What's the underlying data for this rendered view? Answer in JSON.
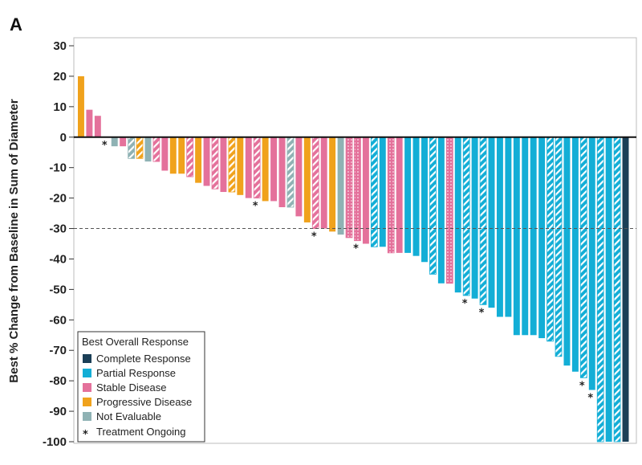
{
  "panel_label": "A",
  "chart_data": {
    "type": "bar",
    "title": "",
    "xlabel": "",
    "ylabel": "Best % Change from Baseline in Sum of Diameter",
    "ylim": [
      -100,
      30
    ],
    "yticks": [
      30,
      20,
      10,
      0,
      -10,
      -20,
      -30,
      -40,
      -50,
      -60,
      -70,
      -80,
      -90,
      -100
    ],
    "ytick_labels": [
      "30",
      "20",
      "10",
      "0",
      "-10",
      "-20",
      "-30",
      "-40",
      "-50",
      "-60",
      "-70",
      "-80",
      "-90",
      "-100"
    ],
    "reference_line": -30,
    "grid": false,
    "categories": [
      "Complete Response",
      "Partial Response",
      "Stable Disease",
      "Progressive Disease",
      "Not Evaluable"
    ],
    "colors": {
      "Complete Response": "#1b3f57",
      "Partial Response": "#13aed6",
      "Stable Disease": "#e4719b",
      "Progressive Disease": "#f0a21c",
      "Not Evaluable": "#8fb2b4"
    },
    "legend": {
      "title": "Best Overall Response",
      "placement": "bottom-left",
      "entries": [
        {
          "label": "Complete Response",
          "color": "#1b3f57"
        },
        {
          "label": "Partial Response",
          "color": "#13aed6"
        },
        {
          "label": "Stable Disease",
          "color": "#e4719b"
        },
        {
          "label": "Progressive Disease",
          "color": "#f0a21c"
        },
        {
          "label": "Not Evaluable",
          "color": "#8fb2b4"
        },
        {
          "label": "Treatment Ongoing",
          "symbol": "*"
        }
      ]
    },
    "bars": [
      {
        "value": 20,
        "category": "Progressive Disease",
        "pattern": "solid",
        "ongoing": false
      },
      {
        "value": 9,
        "category": "Stable Disease",
        "pattern": "solid",
        "ongoing": false
      },
      {
        "value": 7,
        "category": "Stable Disease",
        "pattern": "solid",
        "ongoing": false
      },
      {
        "value": 0,
        "category": "Stable Disease",
        "pattern": "solid",
        "ongoing": true
      },
      {
        "value": -3,
        "category": "Not Evaluable",
        "pattern": "solid",
        "ongoing": false
      },
      {
        "value": -3,
        "category": "Stable Disease",
        "pattern": "solid",
        "ongoing": false
      },
      {
        "value": -7,
        "category": "Not Evaluable",
        "pattern": "hatched",
        "ongoing": false
      },
      {
        "value": -7,
        "category": "Progressive Disease",
        "pattern": "hatched",
        "ongoing": false
      },
      {
        "value": -8,
        "category": "Not Evaluable",
        "pattern": "solid",
        "ongoing": false
      },
      {
        "value": -8,
        "category": "Stable Disease",
        "pattern": "hatched",
        "ongoing": false
      },
      {
        "value": -11,
        "category": "Stable Disease",
        "pattern": "solid",
        "ongoing": false
      },
      {
        "value": -12,
        "category": "Progressive Disease",
        "pattern": "solid",
        "ongoing": false
      },
      {
        "value": -12,
        "category": "Progressive Disease",
        "pattern": "solid",
        "ongoing": false
      },
      {
        "value": -13,
        "category": "Stable Disease",
        "pattern": "hatched",
        "ongoing": false
      },
      {
        "value": -15,
        "category": "Progressive Disease",
        "pattern": "solid",
        "ongoing": false
      },
      {
        "value": -16,
        "category": "Stable Disease",
        "pattern": "solid",
        "ongoing": false
      },
      {
        "value": -17,
        "category": "Stable Disease",
        "pattern": "hatched",
        "ongoing": false
      },
      {
        "value": -18,
        "category": "Stable Disease",
        "pattern": "solid",
        "ongoing": false
      },
      {
        "value": -18,
        "category": "Progressive Disease",
        "pattern": "hatched",
        "ongoing": false
      },
      {
        "value": -19,
        "category": "Progressive Disease",
        "pattern": "solid",
        "ongoing": false
      },
      {
        "value": -20,
        "category": "Stable Disease",
        "pattern": "solid",
        "ongoing": false
      },
      {
        "value": -20,
        "category": "Stable Disease",
        "pattern": "hatched",
        "ongoing": true
      },
      {
        "value": -21,
        "category": "Progressive Disease",
        "pattern": "solid",
        "ongoing": false
      },
      {
        "value": -21,
        "category": "Stable Disease",
        "pattern": "solid",
        "ongoing": false
      },
      {
        "value": -23,
        "category": "Stable Disease",
        "pattern": "solid",
        "ongoing": false
      },
      {
        "value": -23,
        "category": "Not Evaluable",
        "pattern": "hatched",
        "ongoing": false
      },
      {
        "value": -26,
        "category": "Stable Disease",
        "pattern": "solid",
        "ongoing": false
      },
      {
        "value": -28,
        "category": "Progressive Disease",
        "pattern": "solid",
        "ongoing": false
      },
      {
        "value": -30,
        "category": "Stable Disease",
        "pattern": "hatched",
        "ongoing": true
      },
      {
        "value": -30,
        "category": "Stable Disease",
        "pattern": "solid",
        "ongoing": false
      },
      {
        "value": -31,
        "category": "Progressive Disease",
        "pattern": "solid",
        "ongoing": false
      },
      {
        "value": -32,
        "category": "Not Evaluable",
        "pattern": "solid",
        "ongoing": false
      },
      {
        "value": -33,
        "category": "Stable Disease",
        "pattern": "dotted",
        "ongoing": false
      },
      {
        "value": -34,
        "category": "Stable Disease",
        "pattern": "dotted",
        "ongoing": true
      },
      {
        "value": -35,
        "category": "Stable Disease",
        "pattern": "solid",
        "ongoing": false
      },
      {
        "value": -36,
        "category": "Partial Response",
        "pattern": "hatched",
        "ongoing": false
      },
      {
        "value": -36,
        "category": "Partial Response",
        "pattern": "solid",
        "ongoing": false
      },
      {
        "value": -38,
        "category": "Stable Disease",
        "pattern": "dotted",
        "ongoing": false
      },
      {
        "value": -38,
        "category": "Stable Disease",
        "pattern": "solid",
        "ongoing": false
      },
      {
        "value": -38,
        "category": "Partial Response",
        "pattern": "solid",
        "ongoing": false
      },
      {
        "value": -39,
        "category": "Partial Response",
        "pattern": "solid",
        "ongoing": false
      },
      {
        "value": -41,
        "category": "Partial Response",
        "pattern": "solid",
        "ongoing": false
      },
      {
        "value": -45,
        "category": "Partial Response",
        "pattern": "hatched",
        "ongoing": false
      },
      {
        "value": -48,
        "category": "Partial Response",
        "pattern": "solid",
        "ongoing": false
      },
      {
        "value": -48,
        "category": "Stable Disease",
        "pattern": "dotted",
        "ongoing": false
      },
      {
        "value": -51,
        "category": "Partial Response",
        "pattern": "solid",
        "ongoing": false
      },
      {
        "value": -52,
        "category": "Partial Response",
        "pattern": "hatched",
        "ongoing": true
      },
      {
        "value": -53,
        "category": "Partial Response",
        "pattern": "solid",
        "ongoing": false
      },
      {
        "value": -55,
        "category": "Partial Response",
        "pattern": "hatched",
        "ongoing": true
      },
      {
        "value": -56,
        "category": "Partial Response",
        "pattern": "solid",
        "ongoing": false
      },
      {
        "value": -59,
        "category": "Partial Response",
        "pattern": "solid",
        "ongoing": false
      },
      {
        "value": -59,
        "category": "Partial Response",
        "pattern": "solid",
        "ongoing": false
      },
      {
        "value": -65,
        "category": "Partial Response",
        "pattern": "solid",
        "ongoing": false
      },
      {
        "value": -65,
        "category": "Partial Response",
        "pattern": "solid",
        "ongoing": false
      },
      {
        "value": -65,
        "category": "Partial Response",
        "pattern": "solid",
        "ongoing": false
      },
      {
        "value": -66,
        "category": "Partial Response",
        "pattern": "solid",
        "ongoing": false
      },
      {
        "value": -67,
        "category": "Partial Response",
        "pattern": "hatched",
        "ongoing": false
      },
      {
        "value": -72,
        "category": "Partial Response",
        "pattern": "hatched",
        "ongoing": false
      },
      {
        "value": -75,
        "category": "Partial Response",
        "pattern": "solid",
        "ongoing": false
      },
      {
        "value": -77,
        "category": "Partial Response",
        "pattern": "solid",
        "ongoing": false
      },
      {
        "value": -79,
        "category": "Partial Response",
        "pattern": "hatched",
        "ongoing": true
      },
      {
        "value": -83,
        "category": "Partial Response",
        "pattern": "solid",
        "ongoing": true
      },
      {
        "value": -100,
        "category": "Partial Response",
        "pattern": "hatched",
        "ongoing": false
      },
      {
        "value": -100,
        "category": "Partial Response",
        "pattern": "solid",
        "ongoing": false
      },
      {
        "value": -100,
        "category": "Partial Response",
        "pattern": "hatched",
        "ongoing": false
      },
      {
        "value": -100,
        "category": "Complete Response",
        "pattern": "solid",
        "ongoing": false
      }
    ]
  }
}
